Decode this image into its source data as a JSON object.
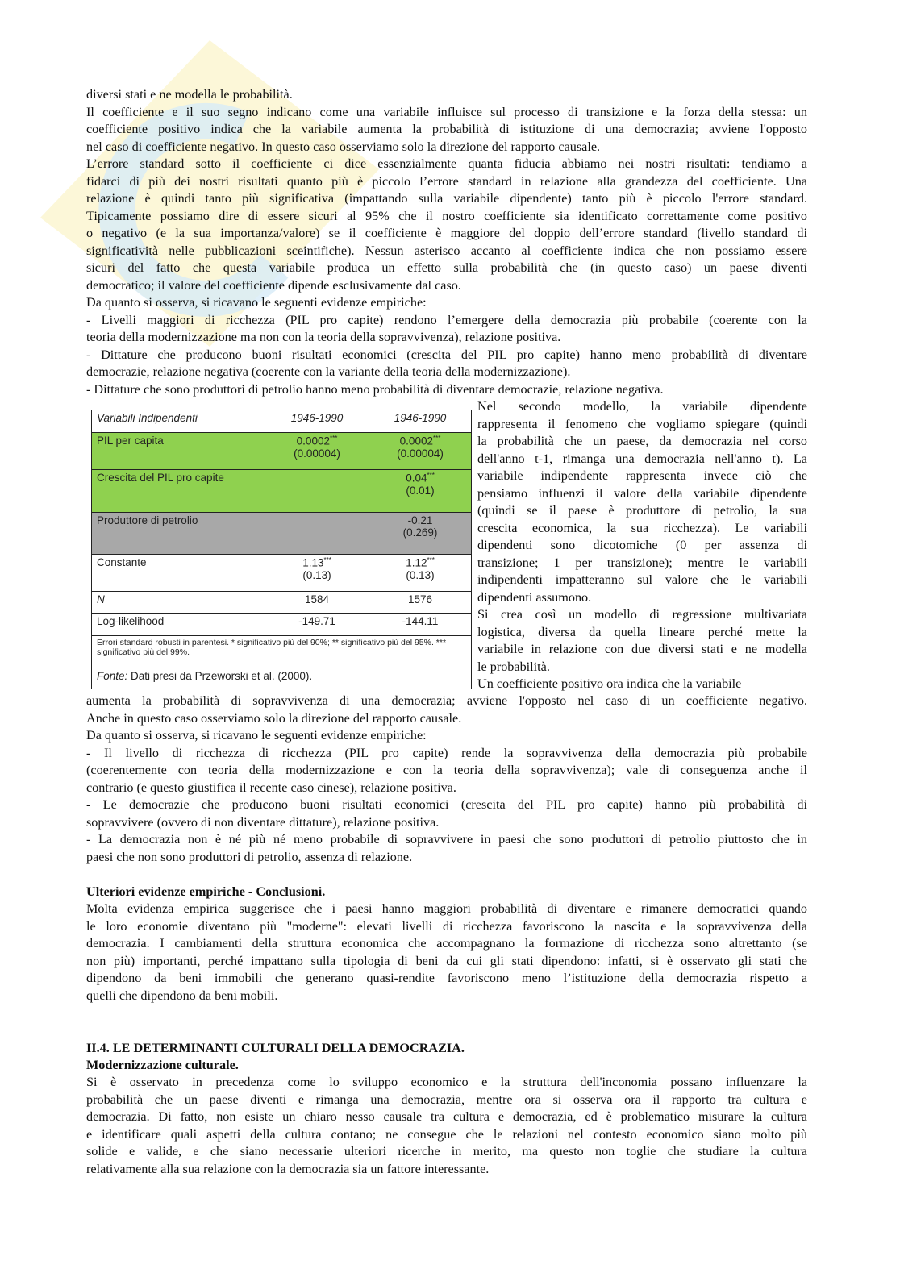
{
  "colors": {
    "green_row": "#8fd14f",
    "gray_row": "#a8a8a8",
    "watermark_yellow": "#f7e9a0",
    "watermark_blue": "#cde6f5"
  },
  "watermark": {
    "icon": "logo-watermark"
  },
  "top_text": [
    [
      "diversi stati e ne modella le probabilità."
    ],
    [
      "Il coefficiente e il suo segno indicano come una variabile influisce sul processo di transizione e la forza della stessa: un",
      "coefficiente positivo indica che la variabile aumenta la probabilità di istituzione di una democrazia; avviene l'opposto",
      "nel caso di coefficiente negativo. In questo caso osserviamo solo la direzione del rapporto causale."
    ],
    [
      "L’errore standard sotto il coefficiente ci dice essenzialmente quanta fiducia abbiamo nei nostri risultati: tendiamo a",
      "fidarci di più dei nostri risultati quanto più è piccolo l’errore standard in relazione alla grandezza del coefficiente.  Una",
      "relazione è quindi tanto più significativa (impattando sulla variabile dipendente) tanto più è piccolo l'errore standard.",
      "Tipicamente possiamo dire di essere sicuri al 95% che il nostro coefficiente sia identificato correttamente come positivo",
      "o negativo (e la sua importanza/valore) se il coefficiente è maggiore del doppio dell’errore standard (livello standard di",
      "significatività nelle pubblicazioni sceintifiche). Nessun asterisco accanto al coefficiente indica che non possiamo essere",
      "sicuri del fatto che questa variabile produca un effetto sulla probabilità che (in questo caso) un paese diventi",
      "democratico; il valore del coefficiente dipende esclusivamente dal caso."
    ],
    [
      "Da quanto si osserva, si ricavano le seguenti evidenze empiriche:"
    ],
    [
      "- Livelli maggiori di ricchezza (PIL pro capite) rendono l’emergere della democrazia più probabile (coerente con la",
      "teoria della modernizzazione ma non con la teoria della sopravvivenza), relazione positiva."
    ],
    [
      "- Dittature che producono buoni risultati economici (crescita del PIL pro capite) hanno meno probabilità di diventare",
      "democrazie, relazione negativa (coerente con la variante della teoria della modernizzazione)."
    ],
    [
      "- Dittature che sono produttori di petrolio hanno meno probabilità di diventare democrazie, relazione negativa."
    ]
  ],
  "side_text": [
    [
      "Nel secondo modello, la variabile dipendente",
      "rappresenta il fenomeno che vogliamo spiegare (quindi",
      "la probabilità che un paese, da democrazia nel corso",
      "dell'anno t-1, rimanga una democrazia nell'anno t). La",
      "variabile indipendente rappresenta invece ciò che",
      "pensiamo influenzi il valore della variabile dipendente",
      "(quindi se il paese è produttore di petrolio, la sua",
      "crescita economica, la sua ricchezza). Le variabili",
      "dipendenti sono dicotomiche (0 per assenza di",
      "transizione; 1 per transizione); mentre le variabili",
      "indipendenti impatteranno sul valore che le variabili",
      "dipendenti assumono."
    ],
    [
      "Si crea così un modello di regressione multivariata",
      "logistica, diversa da quella lineare perché mette la",
      "variabile in relazione con due diversi stati e ne modella",
      "le probabilità."
    ],
    [
      "Un coefficiente positivo ora indica che la variabile"
    ]
  ],
  "middle_text": [
    [
      "aumenta la probabilità di sopravvivenza di una democrazia; avviene l'opposto nel caso di un coefficiente negativo.",
      "Anche in questo caso osserviamo solo la direzione del rapporto causale."
    ],
    [
      "Da quanto si osserva, si ricavano le seguenti evidenze empiriche:"
    ],
    [
      "- Il livello di ricchezza di ricchezza (PIL pro capite) rende la sopravvivenza della democrazia più probabile",
      "(coerentemente con teoria della modernizzazione e con la teoria della sopravvivenza); vale di conseguenza anche il",
      "contrario (e questo giustifica il recente caso cinese), relazione positiva."
    ],
    [
      "- Le democrazie che producono buoni risultati economici (crescita del PIL pro capite) hanno più probabilità di",
      "sopravvivere (ovvero di non diventare dittature), relazione positiva."
    ],
    [
      "- La democrazia non è né più né meno probabile di sopravvivere in paesi che sono produttori di petrolio piuttosto che in",
      "paesi che non sono produttori di petrolio, assenza di relazione."
    ]
  ],
  "conclusions": {
    "heading": "Ulteriori evidenze empiriche - Conclusioni.",
    "text": [
      [
        "Molta evidenza empirica suggerisce che i paesi hanno maggiori probabilità di diventare e rimanere democratici quando",
        "le loro economie diventano più \"moderne\": elevati livelli di ricchezza favoriscono la nascita e la sopravvivenza della",
        "democrazia. I cambiamenti della struttura economica che accompagnano la formazione di ricchezza sono altrettanto (se",
        "non più) importanti, perché impattano sulla tipologia di beni da cui gli stati dipendono: infatti, si è osservato gli stati che",
        "dipendono da beni immobili che generano quasi-rendite favoriscono meno l’istituzione della democrazia rispetto a",
        "quelli che dipendono da beni mobili."
      ]
    ]
  },
  "section": {
    "heading": "II.4. LE DETERMINANTI CULTURALI DELLA DEMOCRAZIA.",
    "subheading": "Modernizzazione culturale.",
    "text": [
      [
        "Si è osservato in precedenza come lo sviluppo economico e la struttura dell'inconomia possano influenzare la",
        "probabilità che un paese diventi e rimanga una democrazia, mentre ora si osserva ora il rapporto tra cultura e",
        "democrazia. Di fatto, non esiste un chiaro nesso causale tra cultura e democrazia, ed è problematico misurare la cultura",
        "e identificare quali aspetti della cultura contano; ne consegue che le relazioni nel contesto economico siano molto più",
        "solide e valide, e che siano necessarie ulteriori ricerche in merito, ma questo non toglie che studiare la cultura",
        "relativamente alla sua relazione con la democrazia sia un fattore interessante."
      ]
    ]
  },
  "table": {
    "header": [
      "Variabili Indipendenti",
      "1946-1990",
      "1946-1990"
    ],
    "rows": [
      {
        "label": "PIL per capita",
        "c1": "0.0002",
        "c1_sig": "***",
        "c1_se": "(0.00004)",
        "c2": "0.0002",
        "c2_sig": "***",
        "c2_se": "(0.00004)"
      },
      {
        "label": "Crescita del PIL pro capite",
        "c1": "",
        "c1_sig": "",
        "c1_se": "",
        "c2": "0.04",
        "c2_sig": "***",
        "c2_se": "(0.01)"
      },
      {
        "label": "Produttore di petrolio",
        "c1": "",
        "c1_sig": "",
        "c1_se": "",
        "c2": "-0.21",
        "c2_sig": "",
        "c2_se": "(0.269)"
      },
      {
        "label": "Constante",
        "c1": "1.13",
        "c1_sig": "***",
        "c1_se": "(0.13)",
        "c2": "1.12",
        "c2_sig": "***",
        "c2_se": "(0.13)"
      },
      {
        "label": "N",
        "c1": "1584",
        "c2": "1576"
      },
      {
        "label": "Log-likelihood",
        "c1": "-149.71",
        "c2": "-144.11"
      }
    ],
    "note": "Errori standard robusti in parentesi. * significativo più del 90%; ** significativo più del 95%. *** significativo più del 99%.",
    "source_label": "Fonte:",
    "source": " Dati presi da Przeworski et al. (2000)."
  }
}
